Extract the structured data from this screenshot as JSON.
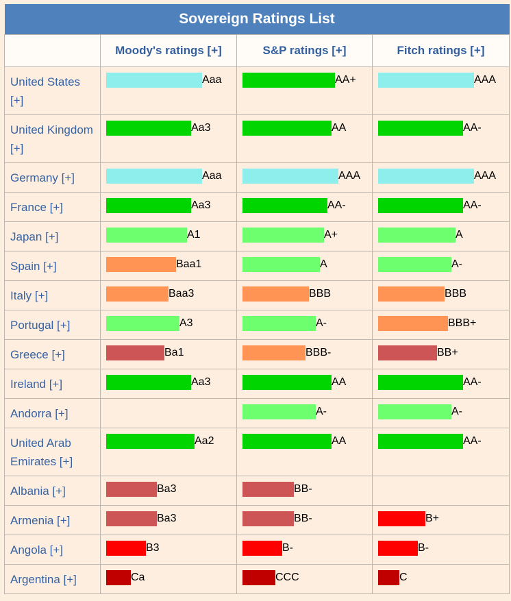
{
  "title": "Sovereign Ratings List",
  "columns": [
    "",
    "Moody's ratings [+]",
    "S&P ratings [+]",
    "Fitch ratings [+]"
  ],
  "colors": {
    "aaa": "#8eeeec",
    "aa": "#00d500",
    "a": "#6eff6e",
    "bbb": "#ff9455",
    "bb": "#cd5555",
    "b": "#ff0000",
    "c": "#c00000"
  },
  "rows": [
    {
      "country": "United States [+]",
      "moodys": "Aaa",
      "sp": "AA+",
      "fitch": "AAA"
    },
    {
      "country": "United Kingdom [+]",
      "moodys": "Aa3",
      "sp": "AA",
      "fitch": "AA-"
    },
    {
      "country": "Germany [+]",
      "moodys": "Aaa",
      "sp": "AAA",
      "fitch": "AAA"
    },
    {
      "country": "France [+]",
      "moodys": "Aa3",
      "sp": "AA-",
      "fitch": "AA-"
    },
    {
      "country": "Japan [+]",
      "moodys": "A1",
      "sp": "A+",
      "fitch": "A"
    },
    {
      "country": "Spain [+]",
      "moodys": "Baa1",
      "sp": "A",
      "fitch": "A-"
    },
    {
      "country": "Italy [+]",
      "moodys": "Baa3",
      "sp": "BBB",
      "fitch": "BBB"
    },
    {
      "country": "Portugal [+]",
      "moodys": "A3",
      "sp": "A-",
      "fitch": "BBB+"
    },
    {
      "country": "Greece [+]",
      "moodys": "Ba1",
      "sp": "BBB-",
      "fitch": "BB+"
    },
    {
      "country": "Ireland [+]",
      "moodys": "Aa3",
      "sp": "AA",
      "fitch": "AA-"
    },
    {
      "country": "Andorra [+]",
      "moodys": "",
      "sp": "A-",
      "fitch": "A-"
    },
    {
      "country": "United Arab Emirates [+]",
      "moodys": "Aa2",
      "sp": "AA",
      "fitch": "AA-"
    },
    {
      "country": "Albania [+]",
      "moodys": "Ba3",
      "sp": "BB-",
      "fitch": ""
    },
    {
      "country": "Armenia [+]",
      "moodys": "Ba3",
      "sp": "BB-",
      "fitch": "B+"
    },
    {
      "country": "Angola [+]",
      "moodys": "B3",
      "sp": "B-",
      "fitch": "B-"
    },
    {
      "country": "Argentina [+]",
      "moodys": "Ca",
      "sp": "CCC",
      "fitch": "C"
    }
  ]
}
